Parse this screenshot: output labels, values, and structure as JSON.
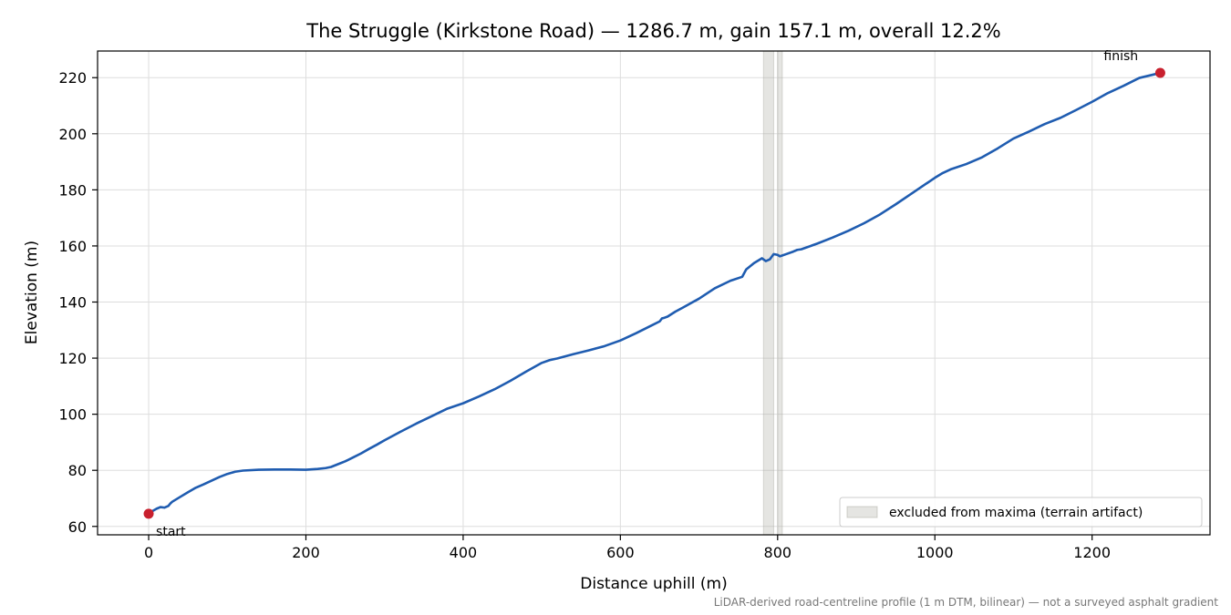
{
  "chart_data": {
    "type": "line",
    "title": "The Struggle (Kirkstone Road) — 1286.7 m, gain 157.1 m, overall 12.2%",
    "xlabel": "Distance uphill (m)",
    "ylabel": "Elevation (m)",
    "xlim": [
      -65,
      1350
    ],
    "ylim": [
      57,
      229.5
    ],
    "xticks": [
      0,
      200,
      400,
      600,
      800,
      1000,
      1200
    ],
    "yticks": [
      60,
      80,
      100,
      120,
      140,
      160,
      180,
      200,
      220
    ],
    "grid": true,
    "line_color": "#1f5cb0",
    "marker_color": "#c8202e",
    "series": [
      {
        "x": [
          0,
          5,
          10,
          15,
          20,
          25,
          28,
          30,
          40,
          50,
          60,
          70,
          80,
          90,
          100,
          110,
          120,
          140,
          160,
          180,
          200,
          215,
          225,
          232,
          240,
          250,
          260,
          270,
          280,
          290,
          300,
          320,
          340,
          360,
          380,
          400,
          420,
          440,
          460,
          480,
          500,
          510,
          520,
          540,
          560,
          580,
          600,
          620,
          640,
          650,
          653,
          655,
          660,
          670,
          680,
          700,
          720,
          740,
          755,
          760,
          770,
          780,
          785,
          790,
          795,
          800,
          803,
          806,
          810,
          820,
          825,
          830,
          850,
          870,
          890,
          910,
          930,
          950,
          970,
          990,
          1000,
          1010,
          1020,
          1040,
          1060,
          1080,
          1100,
          1120,
          1140,
          1160,
          1180,
          1200,
          1220,
          1240,
          1260,
          1286.7
        ],
        "y": [
          64.5,
          65.5,
          66.3,
          66.9,
          66.7,
          67.3,
          68.3,
          68.8,
          70.5,
          72.2,
          73.8,
          75.0,
          76.3,
          77.6,
          78.7,
          79.5,
          79.9,
          80.2,
          80.3,
          80.3,
          80.2,
          80.5,
          80.8,
          81.2,
          82.1,
          83.2,
          84.6,
          86.0,
          87.6,
          89.1,
          90.7,
          93.7,
          96.6,
          99.3,
          102.0,
          103.9,
          106.3,
          108.9,
          111.9,
          115.2,
          118.3,
          119.3,
          119.9,
          121.4,
          122.8,
          124.3,
          126.3,
          128.9,
          131.7,
          133.1,
          134.2,
          134.3,
          134.8,
          136.6,
          138.1,
          141.2,
          144.9,
          147.6,
          149.0,
          151.6,
          153.9,
          155.6,
          154.6,
          155.2,
          157.1,
          156.8,
          156.3,
          156.6,
          157.0,
          158.0,
          158.6,
          158.8,
          160.8,
          163.0,
          165.4,
          168.1,
          171.2,
          174.8,
          178.6,
          182.4,
          184.3,
          186.0,
          187.3,
          189.2,
          191.6,
          194.8,
          198.3,
          200.8,
          203.5,
          205.7,
          208.5,
          211.4,
          214.5,
          217.1,
          219.9,
          221.7
        ]
      }
    ],
    "points": [
      {
        "label": "start",
        "x": 0,
        "y": 64.5
      },
      {
        "label": "finish",
        "x": 1286.7,
        "y": 221.7
      }
    ],
    "excluded_ranges": [
      [
        782,
        795
      ],
      [
        800,
        806
      ]
    ],
    "legend": {
      "label": "excluded from maxima (terrain artifact)",
      "placement": "lower right"
    },
    "footnote": "LiDAR-derived road-centreline profile (1 m DTM, bilinear) — not a surveyed asphalt gradient"
  }
}
